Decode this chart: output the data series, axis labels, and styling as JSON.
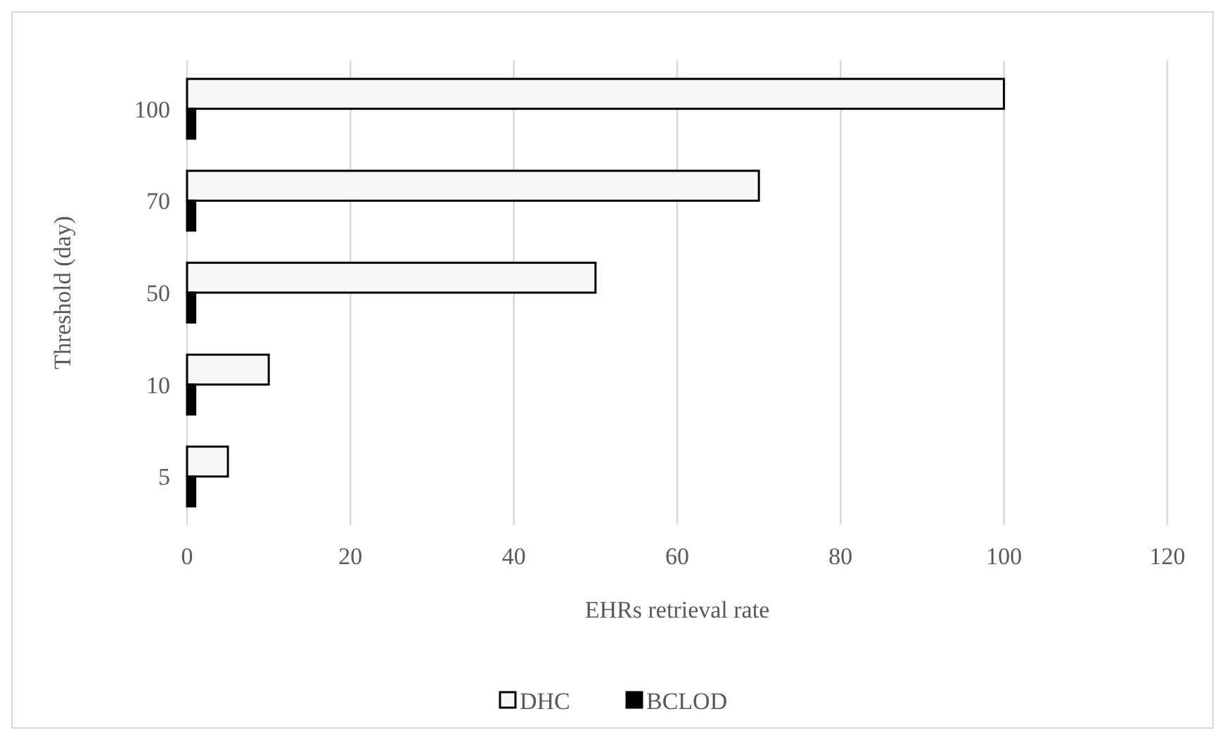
{
  "chart_data": {
    "type": "bar",
    "orientation": "horizontal",
    "xlabel": "EHRs retrieval rate",
    "ylabel": "Threshold (day)",
    "categories": [
      "100",
      "70",
      "50",
      "10",
      "5"
    ],
    "series": [
      {
        "name": "DHC",
        "color": "#f7f7f7",
        "values": [
          100,
          70,
          50,
          10,
          5
        ]
      },
      {
        "name": "BCLOD",
        "color": "#000000",
        "values": [
          1,
          1,
          1,
          1,
          1
        ]
      }
    ],
    "xlim": [
      0,
      120
    ],
    "xticks": [
      0,
      20,
      40,
      60,
      80,
      100,
      120
    ],
    "grid": "x",
    "legend": "bottom"
  }
}
